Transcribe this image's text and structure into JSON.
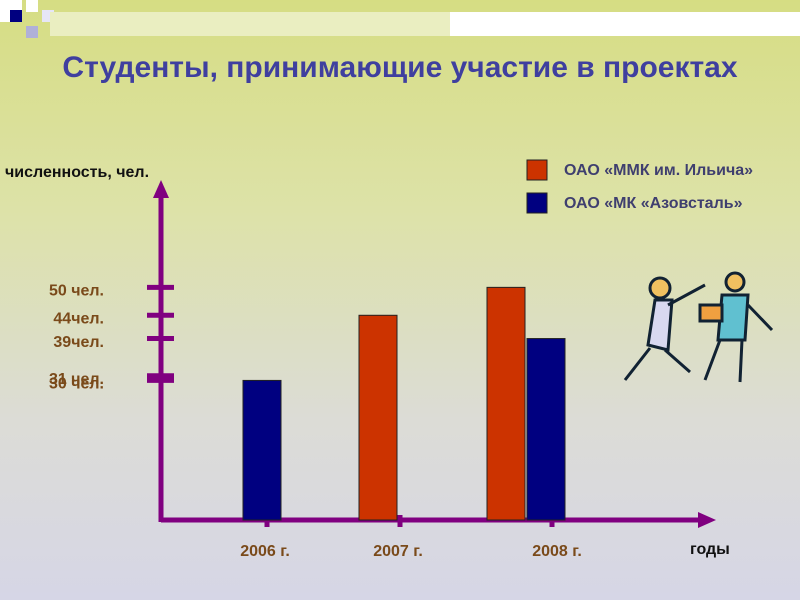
{
  "chart_data": {
    "type": "bar",
    "title": "Студенты, принимающие участие в проектах",
    "ylabel": "численность, чел.",
    "xlabel": "годы",
    "categories": [
      "2006 г.",
      "2007 г.",
      "2008 г."
    ],
    "series": [
      {
        "name": "ОАО «ММК им. Ильича»",
        "color": "#cc3300",
        "values": [
          null,
          44,
          50
        ]
      },
      {
        "name": "ОАО «МК «Азовсталь»",
        "color": "#000080",
        "values": [
          30,
          null,
          39
        ]
      }
    ],
    "ylim": [
      0,
      72
    ],
    "yticks": [
      {
        "value": 50,
        "label": "50 чел."
      },
      {
        "value": 44,
        "label": "44чел."
      },
      {
        "value": 39,
        "label": "39чел."
      },
      {
        "value": 31,
        "label": "31 чел."
      },
      {
        "value": 30,
        "label": "30 чел."
      }
    ],
    "legend": "top-right"
  }
}
